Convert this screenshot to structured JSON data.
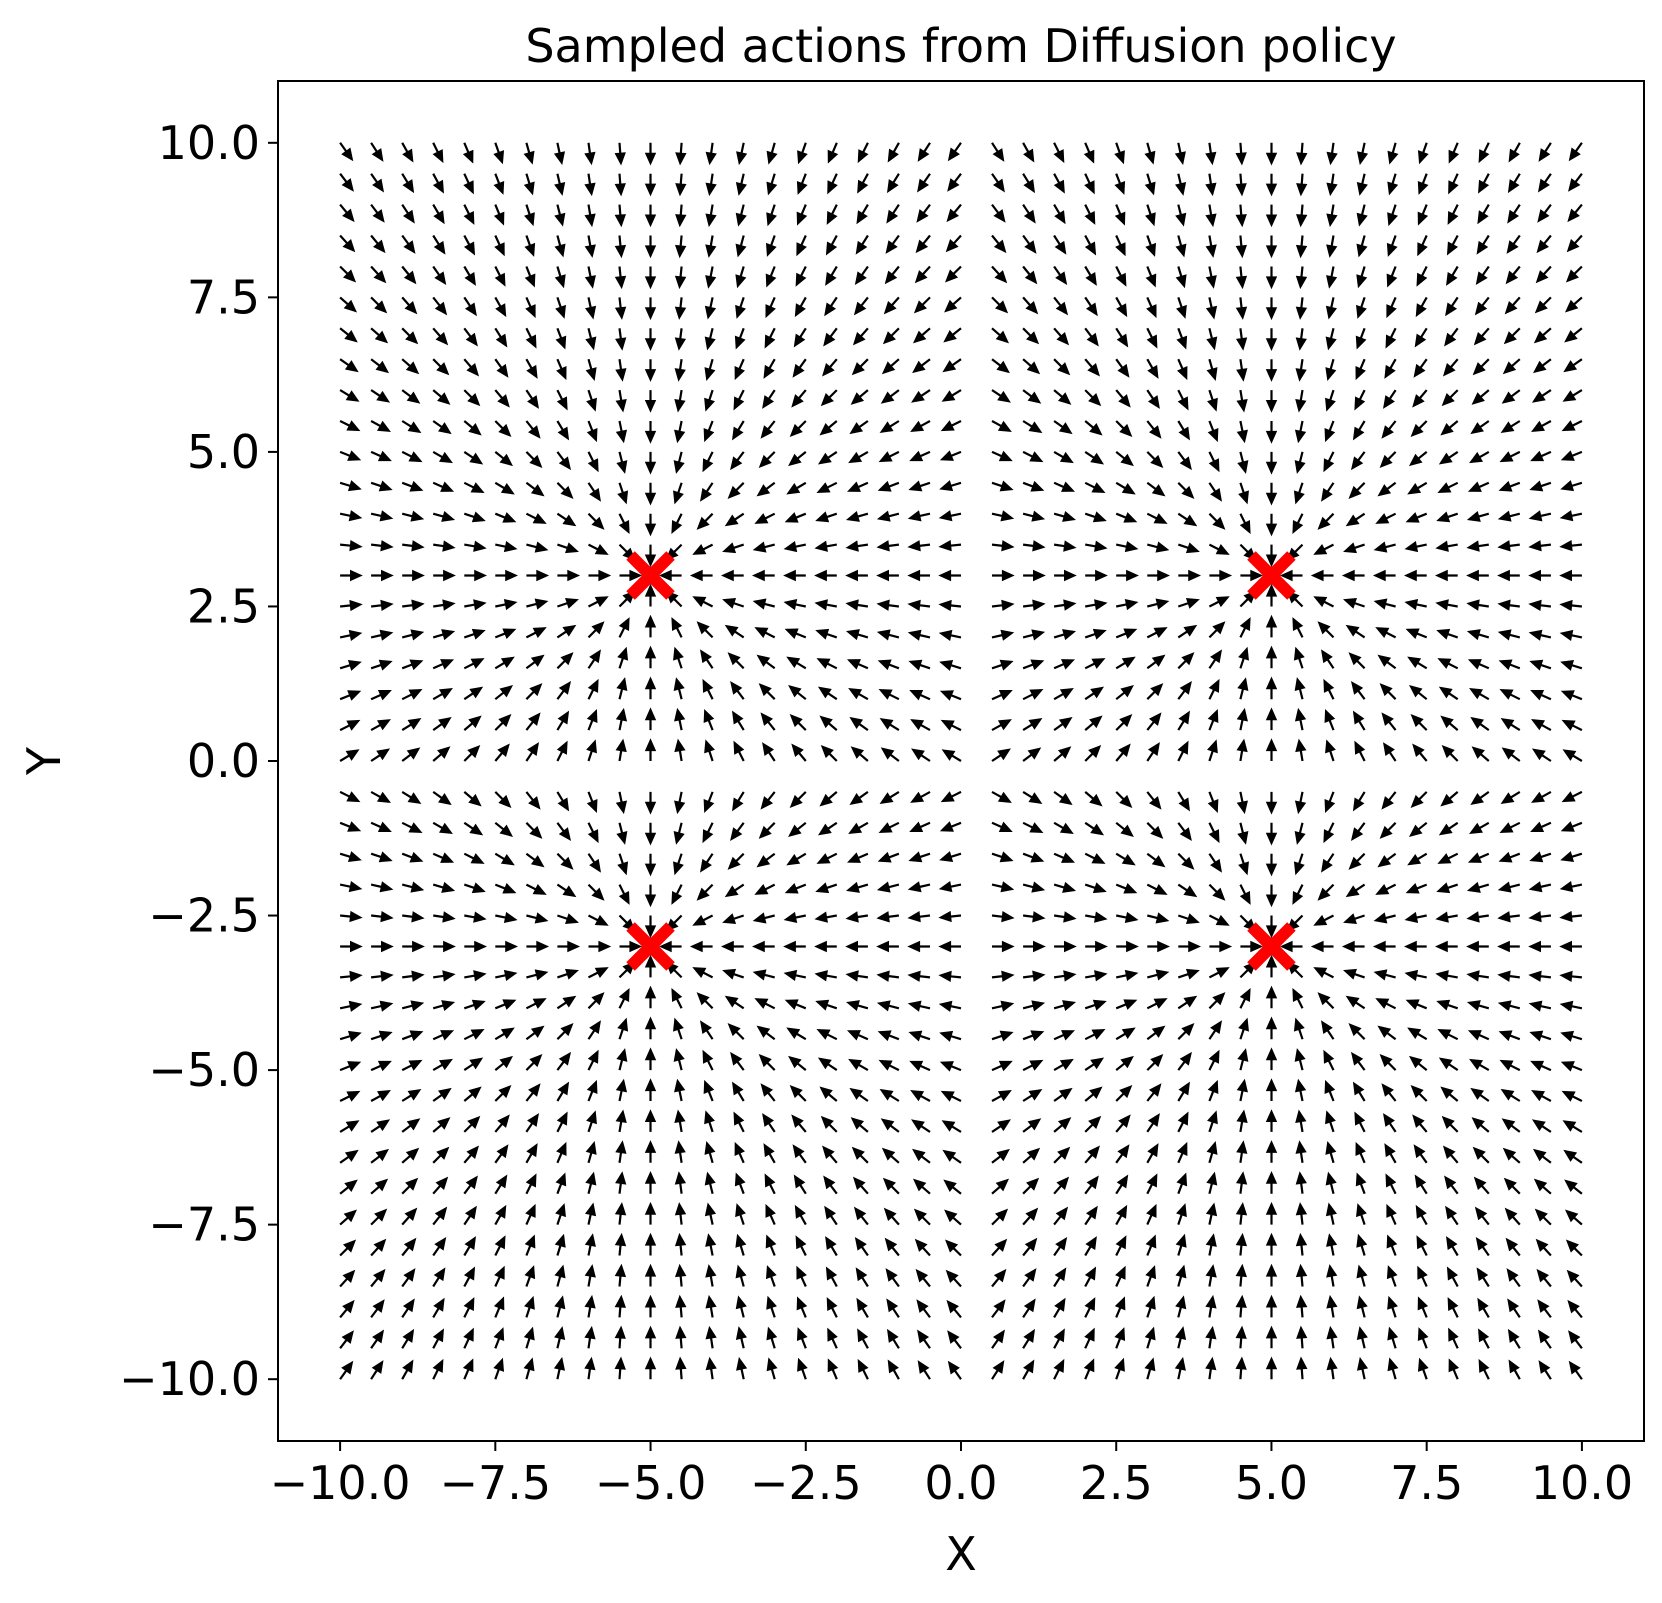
{
  "chart_data": {
    "type": "quiver",
    "title": "Sampled actions from Diffusion policy",
    "xlabel": "X",
    "ylabel": "Y",
    "xlim": [
      -11,
      11
    ],
    "ylim": [
      -11,
      11
    ],
    "grid": false,
    "x_ticks": [
      -10.0,
      -7.5,
      -5.0,
      -2.5,
      0.0,
      2.5,
      5.0,
      7.5,
      10.0
    ],
    "y_ticks": [
      -10.0,
      -7.5,
      -5.0,
      -2.5,
      0.0,
      2.5,
      5.0,
      7.5,
      10.0
    ],
    "x_tick_labels": [
      "−10.0",
      "−7.5",
      "−5.0",
      "−2.5",
      "0.0",
      "2.5",
      "5.0",
      "7.5",
      "10.0"
    ],
    "y_tick_labels": [
      "−10.0",
      "−7.5",
      "−5.0",
      "−2.5",
      "0.0",
      "2.5",
      "5.0",
      "7.5",
      "10.0"
    ],
    "quiver": {
      "x_range": [
        -10,
        10
      ],
      "y_range": [
        -10,
        10
      ],
      "grid_points": 41,
      "color": "#000000",
      "pattern": "unit vectors pointing toward the nearest marker"
    },
    "markers": {
      "symbol": "x",
      "color": "#ff0000",
      "points": [
        [
          -5,
          3
        ],
        [
          5,
          3
        ],
        [
          -5,
          -3
        ],
        [
          5,
          -3
        ]
      ]
    }
  }
}
